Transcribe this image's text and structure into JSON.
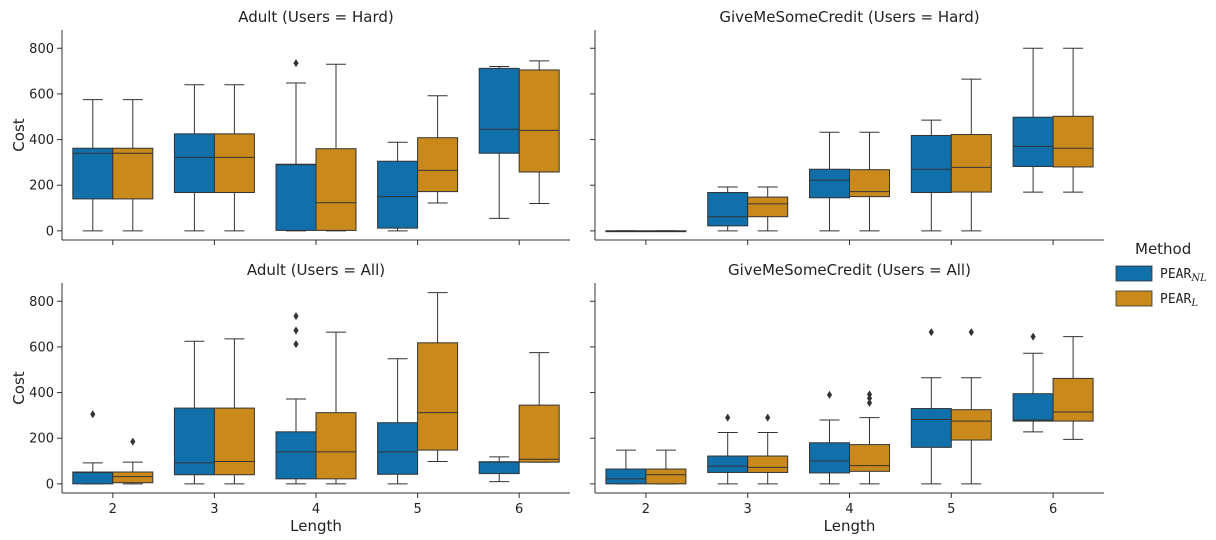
{
  "chart_data": {
    "type": "box",
    "colors": {
      "PEAR_NL": "#1170aa",
      "PEAR_L": "#c98a1b",
      "line": "#333333"
    },
    "legend": {
      "title": "Method",
      "placement": "right",
      "entries": [
        {
          "key": "PEAR_NL",
          "base": "PEAR",
          "sub": "NL"
        },
        {
          "key": "PEAR_L",
          "base": "PEAR",
          "sub": "L"
        }
      ]
    },
    "xlabel": "Length",
    "ylabel": "Cost",
    "categories": [
      "2",
      "3",
      "4",
      "5",
      "6"
    ],
    "y_ticks": [
      0,
      200,
      400,
      600,
      800
    ],
    "ylim": [
      -40,
      880
    ],
    "grid": false,
    "panels": [
      {
        "title": "Adult (Users = Hard)",
        "boxes": [
          {
            "cat": "2",
            "method": "PEAR_NL",
            "low": 0,
            "q1": 140,
            "med": 340,
            "q3": 362,
            "high": 575,
            "outliers": []
          },
          {
            "cat": "2",
            "method": "PEAR_L",
            "low": 0,
            "q1": 140,
            "med": 340,
            "q3": 362,
            "high": 575,
            "outliers": []
          },
          {
            "cat": "3",
            "method": "PEAR_NL",
            "low": 0,
            "q1": 168,
            "med": 322,
            "q3": 425,
            "high": 640,
            "outliers": []
          },
          {
            "cat": "3",
            "method": "PEAR_L",
            "low": 0,
            "q1": 168,
            "med": 322,
            "q3": 425,
            "high": 640,
            "outliers": []
          },
          {
            "cat": "4",
            "method": "PEAR_NL",
            "low": 0,
            "q1": 2,
            "med": 290,
            "q3": 292,
            "high": 648,
            "outliers": [
              735
            ]
          },
          {
            "cat": "4",
            "method": "PEAR_L",
            "low": 0,
            "q1": 2,
            "med": 123,
            "q3": 360,
            "high": 730,
            "outliers": []
          },
          {
            "cat": "5",
            "method": "PEAR_NL",
            "low": 0,
            "q1": 12,
            "med": 150,
            "q3": 305,
            "high": 388,
            "outliers": []
          },
          {
            "cat": "5",
            "method": "PEAR_L",
            "low": 122,
            "q1": 172,
            "med": 265,
            "q3": 408,
            "high": 592,
            "outliers": []
          },
          {
            "cat": "6",
            "method": "PEAR_NL",
            "low": 55,
            "q1": 340,
            "med": 445,
            "q3": 712,
            "high": 720,
            "outliers": []
          },
          {
            "cat": "6",
            "method": "PEAR_L",
            "low": 120,
            "q1": 258,
            "med": 440,
            "q3": 705,
            "high": 745,
            "outliers": []
          }
        ]
      },
      {
        "title": "GiveMeSomeCredit (Users = Hard)",
        "boxes": [
          {
            "cat": "2",
            "method": "PEAR_NL",
            "low": 0,
            "q1": 0,
            "med": 0,
            "q3": 0,
            "high": 0,
            "outliers": []
          },
          {
            "cat": "2",
            "method": "PEAR_L",
            "low": 0,
            "q1": 0,
            "med": 0,
            "q3": 0,
            "high": 0,
            "outliers": []
          },
          {
            "cat": "3",
            "method": "PEAR_NL",
            "low": 0,
            "q1": 22,
            "med": 62,
            "q3": 168,
            "high": 192,
            "outliers": []
          },
          {
            "cat": "3",
            "method": "PEAR_L",
            "low": 0,
            "q1": 62,
            "med": 118,
            "q3": 148,
            "high": 192,
            "outliers": []
          },
          {
            "cat": "4",
            "method": "PEAR_NL",
            "low": 0,
            "q1": 145,
            "med": 222,
            "q3": 270,
            "high": 432,
            "outliers": []
          },
          {
            "cat": "4",
            "method": "PEAR_L",
            "low": 0,
            "q1": 150,
            "med": 172,
            "q3": 268,
            "high": 432,
            "outliers": []
          },
          {
            "cat": "5",
            "method": "PEAR_NL",
            "low": 0,
            "q1": 168,
            "med": 270,
            "q3": 418,
            "high": 485,
            "outliers": []
          },
          {
            "cat": "5",
            "method": "PEAR_L",
            "low": 0,
            "q1": 170,
            "med": 278,
            "q3": 422,
            "high": 665,
            "outliers": []
          },
          {
            "cat": "6",
            "method": "PEAR_NL",
            "low": 170,
            "q1": 282,
            "med": 370,
            "q3": 498,
            "high": 800,
            "outliers": []
          },
          {
            "cat": "6",
            "method": "PEAR_L",
            "low": 170,
            "q1": 280,
            "med": 362,
            "q3": 502,
            "high": 800,
            "outliers": []
          }
        ]
      },
      {
        "title": "Adult (Users = All)",
        "boxes": [
          {
            "cat": "2",
            "method": "PEAR_NL",
            "low": 0,
            "q1": 0,
            "med": 50,
            "q3": 52,
            "high": 92,
            "outliers": [
              305
            ]
          },
          {
            "cat": "2",
            "method": "PEAR_L",
            "low": 0,
            "q1": 5,
            "med": 32,
            "q3": 52,
            "high": 95,
            "outliers": [
              185
            ]
          },
          {
            "cat": "3",
            "method": "PEAR_NL",
            "low": 0,
            "q1": 40,
            "med": 92,
            "q3": 332,
            "high": 625,
            "outliers": []
          },
          {
            "cat": "3",
            "method": "PEAR_L",
            "low": 0,
            "q1": 40,
            "med": 98,
            "q3": 332,
            "high": 635,
            "outliers": []
          },
          {
            "cat": "4",
            "method": "PEAR_NL",
            "low": 0,
            "q1": 22,
            "med": 140,
            "q3": 228,
            "high": 372,
            "outliers": [
              612,
              672,
              735
            ]
          },
          {
            "cat": "4",
            "method": "PEAR_L",
            "low": 0,
            "q1": 22,
            "med": 140,
            "q3": 312,
            "high": 665,
            "outliers": []
          },
          {
            "cat": "5",
            "method": "PEAR_NL",
            "low": 0,
            "q1": 42,
            "med": 140,
            "q3": 268,
            "high": 548,
            "outliers": []
          },
          {
            "cat": "5",
            "method": "PEAR_L",
            "low": 98,
            "q1": 148,
            "med": 312,
            "q3": 618,
            "high": 838,
            "outliers": []
          },
          {
            "cat": "6",
            "method": "PEAR_NL",
            "low": 10,
            "q1": 45,
            "med": 95,
            "q3": 97,
            "high": 118,
            "outliers": []
          },
          {
            "cat": "6",
            "method": "PEAR_L",
            "low": 95,
            "q1": 95,
            "med": 108,
            "q3": 345,
            "high": 575,
            "outliers": []
          }
        ]
      },
      {
        "title": "GiveMeSomeCredit (Users = All)",
        "boxes": [
          {
            "cat": "2",
            "method": "PEAR_NL",
            "low": 0,
            "q1": 0,
            "med": 22,
            "q3": 65,
            "high": 148,
            "outliers": []
          },
          {
            "cat": "2",
            "method": "PEAR_L",
            "low": 0,
            "q1": 0,
            "med": 40,
            "q3": 65,
            "high": 148,
            "outliers": []
          },
          {
            "cat": "3",
            "method": "PEAR_NL",
            "low": 0,
            "q1": 50,
            "med": 78,
            "q3": 122,
            "high": 225,
            "outliers": [
              290
            ]
          },
          {
            "cat": "3",
            "method": "PEAR_L",
            "low": 0,
            "q1": 50,
            "med": 72,
            "q3": 122,
            "high": 225,
            "outliers": [
              290
            ]
          },
          {
            "cat": "4",
            "method": "PEAR_NL",
            "low": 0,
            "q1": 48,
            "med": 100,
            "q3": 180,
            "high": 280,
            "outliers": [
              390
            ]
          },
          {
            "cat": "4",
            "method": "PEAR_L",
            "low": 0,
            "q1": 55,
            "med": 80,
            "q3": 172,
            "high": 290,
            "outliers": [
              355,
              375,
              392
            ]
          },
          {
            "cat": "5",
            "method": "PEAR_NL",
            "low": 0,
            "q1": 160,
            "med": 282,
            "q3": 330,
            "high": 465,
            "outliers": [
              665
            ]
          },
          {
            "cat": "5",
            "method": "PEAR_L",
            "low": 0,
            "q1": 192,
            "med": 275,
            "q3": 325,
            "high": 465,
            "outliers": [
              665
            ]
          },
          {
            "cat": "6",
            "method": "PEAR_NL",
            "low": 228,
            "q1": 275,
            "med": 280,
            "q3": 395,
            "high": 572,
            "outliers": [
              645
            ]
          },
          {
            "cat": "6",
            "method": "PEAR_L",
            "low": 195,
            "q1": 275,
            "med": 315,
            "q3": 462,
            "high": 645,
            "outliers": []
          }
        ]
      }
    ]
  }
}
